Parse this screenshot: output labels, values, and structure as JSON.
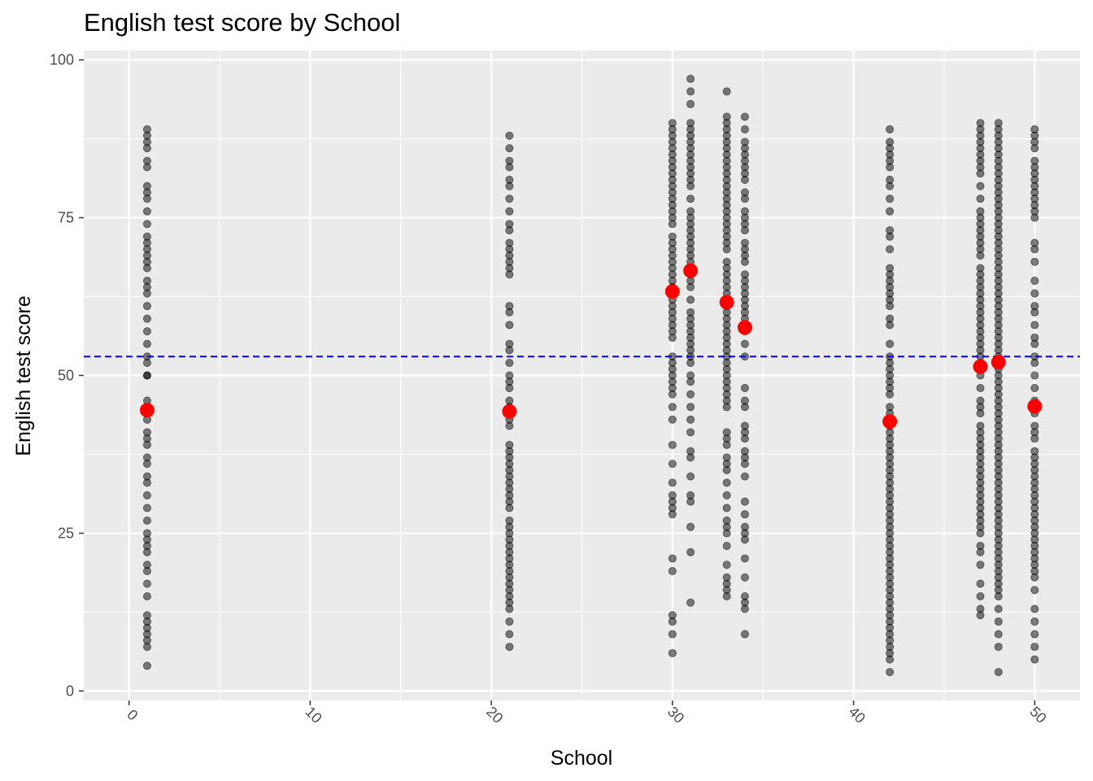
{
  "chart_data": {
    "type": "scatter",
    "title": "English test score by School",
    "xlabel": "School",
    "ylabel": "English test score",
    "xlim": [
      -2.5,
      52.5
    ],
    "ylim": [
      -1.5,
      101.5
    ],
    "x_ticks": [
      0,
      10,
      20,
      30,
      40,
      50
    ],
    "y_ticks": [
      0,
      25,
      50,
      75,
      100
    ],
    "grid": true,
    "legend": "none",
    "colors": {
      "panel": "#ebebeb",
      "grid": "#ffffff",
      "points": "#000000",
      "means": "#ff0000",
      "reference_line": "#0000ff"
    },
    "overall_mean": 53,
    "school_means": [
      {
        "school": 1,
        "mean": 44.5
      },
      {
        "school": 21,
        "mean": 44.3
      },
      {
        "school": 30,
        "mean": 63.3
      },
      {
        "school": 31,
        "mean": 66.6
      },
      {
        "school": 33,
        "mean": 61.6
      },
      {
        "school": 34,
        "mean": 57.6
      },
      {
        "school": 42,
        "mean": 42.7
      },
      {
        "school": 47,
        "mean": 51.4
      },
      {
        "school": 48,
        "mean": 52.1
      },
      {
        "school": 50,
        "mean": 45.1
      }
    ],
    "series": [
      {
        "school": 1,
        "values": [
          89,
          88,
          87,
          86,
          84,
          83,
          80,
          79,
          78,
          76,
          74,
          72,
          71,
          70,
          69,
          68,
          67,
          65,
          64,
          63,
          61,
          59,
          57,
          55,
          53,
          52,
          50,
          50,
          46,
          45,
          44,
          43,
          41,
          40,
          39,
          37,
          36,
          34,
          33,
          31,
          29,
          27,
          25,
          24,
          23,
          22,
          20,
          19,
          17,
          15,
          12,
          11,
          10,
          9,
          8,
          7,
          4
        ]
      },
      {
        "school": 21,
        "values": [
          88,
          86,
          84,
          83,
          81,
          80,
          78,
          76,
          74,
          73,
          71,
          70,
          69,
          68,
          67,
          66,
          61,
          60,
          58,
          55,
          54,
          52,
          50,
          49,
          48,
          46,
          45,
          44,
          43,
          42,
          39,
          38,
          37,
          36,
          35,
          34,
          33,
          32,
          31,
          30,
          29,
          27,
          26,
          25,
          24,
          23,
          22,
          21,
          20,
          19,
          18,
          17,
          16,
          15,
          14,
          13,
          11,
          9,
          7
        ]
      },
      {
        "school": 30,
        "values": [
          90,
          89,
          88,
          87,
          86,
          85,
          84,
          83,
          82,
          81,
          80,
          79,
          78,
          77,
          76,
          75,
          74,
          72,
          71,
          70,
          69,
          68,
          67,
          66,
          65,
          64,
          63,
          62,
          61,
          60,
          59,
          58,
          57,
          56,
          53,
          52,
          51,
          50,
          49,
          48,
          47,
          45,
          43,
          39,
          36,
          33,
          31,
          30,
          29,
          28,
          21,
          19,
          12,
          11,
          9,
          6
        ]
      },
      {
        "school": 31,
        "values": [
          97,
          95,
          93,
          90,
          89,
          88,
          87,
          86,
          85,
          84,
          83,
          82,
          81,
          80,
          78,
          76,
          75,
          74,
          73,
          72,
          71,
          70,
          69,
          68,
          67,
          66,
          65,
          64,
          62,
          60,
          59,
          58,
          57,
          56,
          55,
          54,
          53,
          52,
          50,
          49,
          47,
          45,
          43,
          41,
          38,
          37,
          34,
          31,
          30,
          26,
          22,
          14
        ]
      },
      {
        "school": 33,
        "values": [
          95,
          91,
          90,
          89,
          88,
          87,
          86,
          85,
          84,
          83,
          82,
          81,
          80,
          79,
          78,
          77,
          76,
          75,
          74,
          73,
          72,
          71,
          70,
          68,
          67,
          66,
          65,
          64,
          63,
          62,
          61,
          60,
          59,
          58,
          57,
          56,
          55,
          54,
          53,
          52,
          51,
          50,
          49,
          48,
          47,
          46,
          45,
          41,
          40,
          39,
          37,
          36,
          35,
          33,
          31,
          29,
          27,
          26,
          25,
          23,
          20,
          18,
          17,
          16,
          15
        ]
      },
      {
        "school": 34,
        "values": [
          91,
          89,
          87,
          86,
          85,
          84,
          83,
          82,
          81,
          79,
          78,
          76,
          75,
          74,
          73,
          71,
          70,
          69,
          68,
          66,
          65,
          64,
          63,
          62,
          61,
          60,
          59,
          58,
          57,
          55,
          53,
          48,
          46,
          45,
          42,
          41,
          40,
          38,
          37,
          36,
          34,
          30,
          28,
          26,
          25,
          24,
          21,
          18,
          15,
          14,
          13,
          9
        ]
      },
      {
        "school": 42,
        "values": [
          89,
          87,
          86,
          85,
          84,
          83,
          81,
          80,
          78,
          76,
          73,
          72,
          70,
          67,
          66,
          65,
          64,
          63,
          62,
          61,
          59,
          58,
          55,
          53,
          52,
          51,
          50,
          49,
          48,
          47,
          45,
          44,
          43,
          42,
          41,
          40,
          39,
          38,
          37,
          36,
          35,
          34,
          33,
          32,
          31,
          30,
          29,
          28,
          27,
          26,
          25,
          24,
          23,
          22,
          21,
          20,
          19,
          18,
          17,
          16,
          15,
          14,
          13,
          12,
          11,
          10,
          9,
          8,
          7,
          6,
          5,
          3
        ]
      },
      {
        "school": 47,
        "values": [
          90,
          89,
          88,
          87,
          86,
          85,
          84,
          83,
          82,
          80,
          78,
          76,
          75,
          74,
          73,
          72,
          71,
          70,
          69,
          67,
          66,
          65,
          64,
          63,
          62,
          61,
          60,
          59,
          58,
          57,
          56,
          55,
          54,
          53,
          52,
          51,
          50,
          48,
          46,
          45,
          44,
          42,
          41,
          40,
          39,
          38,
          37,
          36,
          35,
          34,
          33,
          32,
          31,
          30,
          29,
          28,
          27,
          26,
          25,
          23,
          22,
          20,
          17,
          15,
          13,
          12
        ]
      },
      {
        "school": 48,
        "values": [
          90,
          89,
          88,
          87,
          86,
          85,
          84,
          83,
          82,
          81,
          80,
          79,
          78,
          77,
          76,
          75,
          74,
          73,
          72,
          71,
          70,
          69,
          68,
          67,
          66,
          65,
          64,
          63,
          62,
          61,
          60,
          59,
          58,
          57,
          56,
          55,
          54,
          53,
          52,
          51,
          50,
          49,
          48,
          47,
          46,
          45,
          44,
          43,
          42,
          41,
          40,
          39,
          38,
          37,
          36,
          35,
          34,
          33,
          32,
          31,
          30,
          29,
          28,
          27,
          26,
          25,
          24,
          23,
          22,
          21,
          20,
          19,
          18,
          17,
          16,
          15,
          13,
          11,
          9,
          7,
          3
        ]
      },
      {
        "school": 50,
        "values": [
          89,
          88,
          87,
          86,
          84,
          83,
          82,
          81,
          80,
          79,
          78,
          77,
          76,
          75,
          71,
          70,
          68,
          65,
          63,
          61,
          60,
          58,
          56,
          55,
          53,
          52,
          50,
          48,
          46,
          45,
          44,
          42,
          41,
          40,
          38,
          37,
          36,
          35,
          34,
          33,
          32,
          31,
          30,
          29,
          28,
          27,
          26,
          25,
          24,
          23,
          22,
          21,
          20,
          19,
          18,
          16,
          13,
          11,
          9,
          7,
          5
        ]
      }
    ]
  }
}
